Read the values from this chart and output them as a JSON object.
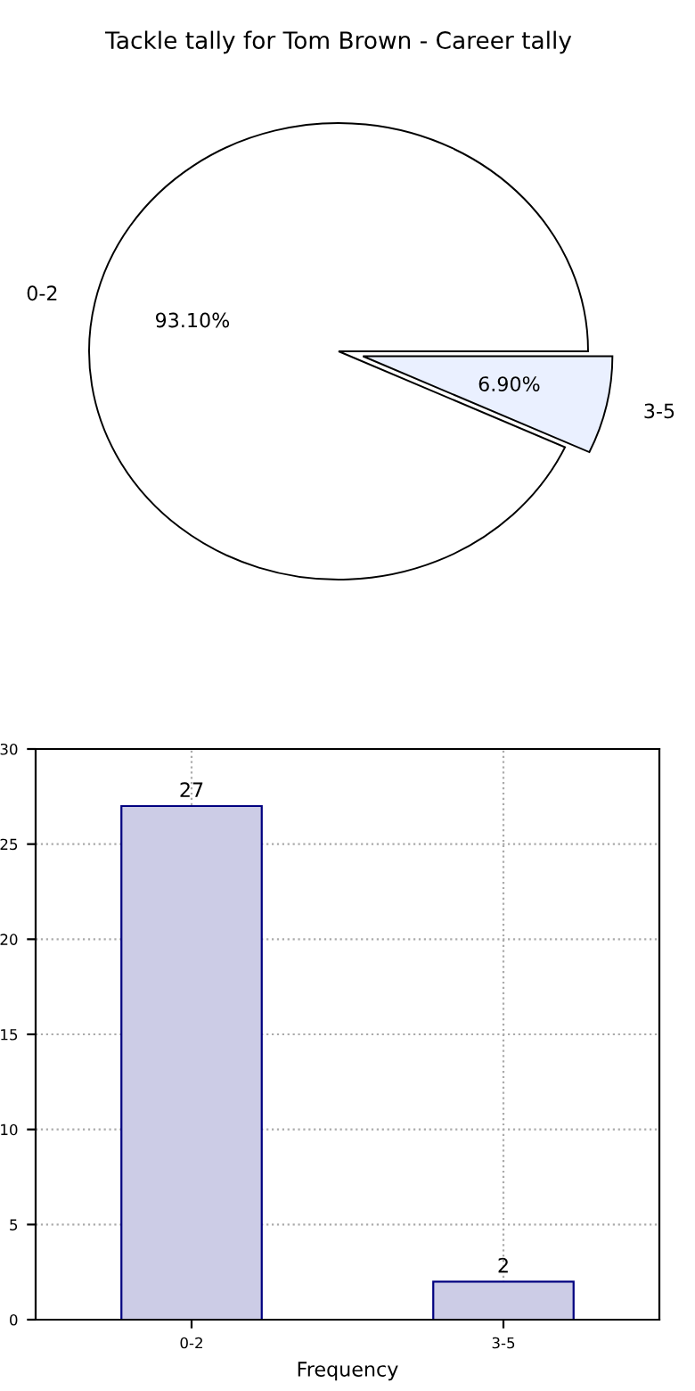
{
  "chart_data": [
    {
      "type": "pie",
      "title": "Tackle tally for Tom Brown - Career tally",
      "categories": [
        "0-2",
        "3-5"
      ],
      "values": [
        93.1,
        6.9
      ],
      "colors": [
        "#ffffff",
        "#eaf0ff"
      ],
      "value_labels": [
        "93.10%",
        "6.90%"
      ]
    },
    {
      "type": "bar",
      "xlabel": "Frequency",
      "categories": [
        "0-2",
        "3-5"
      ],
      "values": [
        27,
        2
      ],
      "color": "#ccccE6",
      "ylim": [
        0,
        30
      ],
      "yticks": [
        0,
        5,
        10,
        15,
        20,
        25,
        30
      ],
      "grid": true,
      "line_style": "dotted",
      "data_labels": true
    }
  ]
}
